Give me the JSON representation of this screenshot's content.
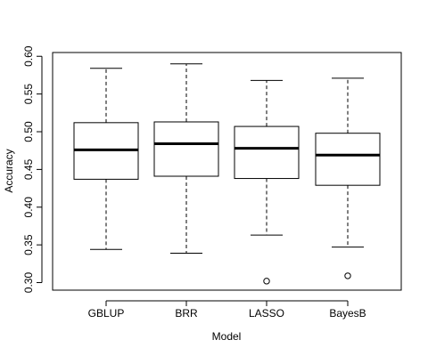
{
  "chart_data": {
    "type": "boxplot",
    "title": "",
    "xlabel": "Model",
    "ylabel": "Accuracy",
    "categories": [
      "GBLUP",
      "BRR",
      "LASSO",
      "BayesB"
    ],
    "ylim": [
      0.29,
      0.605
    ],
    "yticks": [
      "0.30",
      "0.35",
      "0.40",
      "0.45",
      "0.50",
      "0.55",
      "0.60"
    ],
    "grid": false,
    "boxes": [
      {
        "name": "GBLUP",
        "whisker_low": 0.344,
        "q1": 0.437,
        "median": 0.476,
        "q3": 0.512,
        "whisker_high": 0.584,
        "outliers": []
      },
      {
        "name": "BRR",
        "whisker_low": 0.339,
        "q1": 0.441,
        "median": 0.484,
        "q3": 0.513,
        "whisker_high": 0.59,
        "outliers": []
      },
      {
        "name": "LASSO",
        "whisker_low": 0.363,
        "q1": 0.438,
        "median": 0.478,
        "q3": 0.507,
        "whisker_high": 0.568,
        "outliers": [
          0.302
        ]
      },
      {
        "name": "BayesB",
        "whisker_low": 0.347,
        "q1": 0.429,
        "median": 0.469,
        "q3": 0.498,
        "whisker_high": 0.571,
        "outliers": [
          0.309
        ]
      }
    ]
  }
}
